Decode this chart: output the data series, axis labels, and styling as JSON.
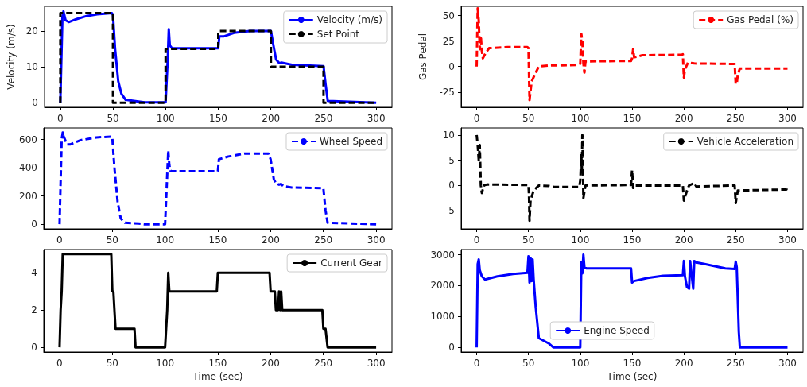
{
  "chart_data": [
    {
      "type": "line",
      "ylabel": "Velocity (m/s)",
      "xlim": [
        -15,
        315
      ],
      "xticks": [
        0,
        50,
        100,
        150,
        200,
        250,
        300
      ],
      "ylim": [
        -1.3,
        26.9
      ],
      "yticks": [
        0,
        10,
        20
      ],
      "legend": "top right",
      "marker": "none",
      "series": [
        {
          "name": "Velocity (m/s)",
          "color": "#0000ff",
          "line_style": "solid",
          "x": [
            0,
            2,
            3,
            5,
            8,
            15,
            25,
            35,
            49,
            50,
            52,
            55,
            58,
            62,
            70,
            80,
            100,
            102,
            103,
            104,
            106,
            150,
            151,
            155,
            165,
            180,
            200,
            203,
            205,
            208,
            210,
            220,
            250,
            252,
            254,
            300
          ],
          "values": [
            0,
            24,
            25.5,
            23,
            22.5,
            23.3,
            24.2,
            24.7,
            25,
            24.5,
            15,
            6,
            2.5,
            0.8,
            0.5,
            0.1,
            0.1,
            12,
            20.5,
            16,
            15.2,
            15.2,
            18.5,
            18.5,
            19.5,
            20,
            20,
            15,
            12,
            11,
            11.2,
            10.6,
            10.2,
            5,
            0.5,
            0
          ]
        },
        {
          "name": "Set Point",
          "color": "#000000",
          "line_style": "dashed",
          "x": [
            0,
            0,
            50,
            50,
            100,
            100,
            150,
            150,
            200,
            200,
            250,
            250,
            300
          ],
          "values": [
            0,
            25,
            25,
            0,
            0,
            15,
            15,
            20,
            20,
            10,
            10,
            0,
            0
          ]
        }
      ]
    },
    {
      "type": "line",
      "ylabel": "Gas Pedal",
      "xlim": [
        -15,
        315
      ],
      "xticks": [
        0,
        50,
        100,
        150,
        200,
        250,
        300
      ],
      "ylim": [
        -40,
        59
      ],
      "yticks": [
        -25,
        0,
        25,
        50
      ],
      "legend": "top right",
      "marker": "none",
      "series": [
        {
          "name": "Gas Pedal (%)",
          "color": "#ff0000",
          "line_style": "dashed",
          "x": [
            0,
            1,
            2,
            3,
            4,
            5,
            6,
            8,
            12,
            30,
            49,
            50,
            51,
            53,
            56,
            60,
            70,
            99,
            100,
            101,
            102,
            103,
            104,
            105,
            149,
            150,
            151,
            152,
            160,
            198,
            199,
            200,
            201,
            204,
            210,
            249,
            250,
            251,
            252,
            254,
            300
          ],
          "values": [
            0,
            57,
            45,
            17,
            30,
            15,
            8,
            12,
            18,
            19,
            19,
            18,
            -33,
            -15,
            -8,
            0,
            1,
            1.5,
            3,
            32,
            25,
            3,
            -6,
            5,
            5.5,
            8,
            17,
            9,
            11,
            11.5,
            12,
            -11,
            -3,
            4,
            3,
            2.5,
            -17,
            -17,
            -8,
            -2,
            -2
          ]
        }
      ]
    },
    {
      "type": "line",
      "xlim": [
        -15,
        315
      ],
      "xticks": [
        0,
        50,
        100,
        150,
        200,
        250,
        300
      ],
      "ylim": [
        -33,
        682
      ],
      "yticks": [
        0,
        200,
        400,
        600
      ],
      "legend": "top right",
      "marker": "none",
      "series": [
        {
          "name": "Wheel Speed",
          "color": "#0000ff",
          "line_style": "dashed",
          "x": [
            0,
            2,
            3,
            4,
            7,
            10,
            20,
            35,
            49,
            50,
            52,
            55,
            58,
            62,
            75,
            80,
            100,
            102,
            103,
            104,
            105,
            106,
            150,
            151,
            160,
            175,
            198,
            200,
            203,
            205,
            208,
            210,
            212,
            220,
            250,
            252,
            254,
            300
          ],
          "values": [
            0,
            600,
            650,
            620,
            565,
            565,
            595,
            615,
            620,
            610,
            400,
            160,
            40,
            10,
            5,
            0,
            0,
            350,
            520,
            420,
            380,
            375,
            375,
            460,
            480,
            500,
            500,
            460,
            320,
            290,
            280,
            285,
            270,
            260,
            255,
            100,
            10,
            0
          ]
        }
      ]
    },
    {
      "type": "line",
      "xlim": [
        -15,
        315
      ],
      "xticks": [
        0,
        50,
        100,
        150,
        200,
        250,
        300
      ],
      "ylim": [
        -8.6,
        11.4
      ],
      "yticks": [
        -5,
        0,
        5,
        10
      ],
      "legend": "top right",
      "marker": "none",
      "series": [
        {
          "name": "Vehicle Acceleration",
          "color": "#000000",
          "line_style": "dashed",
          "x": [
            0,
            1,
            2,
            3,
            4,
            5,
            7,
            10,
            50,
            50.5,
            51,
            52,
            55,
            60,
            70,
            75,
            99,
            100,
            101,
            101.5,
            102,
            103,
            105,
            149,
            150,
            151,
            152,
            199,
            200,
            203,
            205,
            210,
            212,
            249,
            250,
            252,
            299,
            300
          ],
          "values": [
            10,
            8,
            5,
            8,
            0,
            -1.5,
            0,
            0.2,
            0.1,
            -2,
            -7,
            -3,
            -1,
            0,
            -0.1,
            -0.3,
            -0.3,
            1,
            6,
            3,
            10,
            -2.5,
            0,
            0.1,
            3,
            -0.5,
            0,
            0,
            -3,
            -1,
            0,
            0.5,
            -0.2,
            0,
            -3.5,
            -1,
            -0.8,
            0
          ]
        }
      ]
    },
    {
      "type": "line",
      "xlabel": "Time (sec)",
      "xlim": [
        -15,
        315
      ],
      "xticks": [
        0,
        50,
        100,
        150,
        200,
        250,
        300
      ],
      "ylim": [
        -0.25,
        5.25
      ],
      "yticks": [
        0,
        2,
        4
      ],
      "legend": "top right",
      "marker": "none",
      "series": [
        {
          "name": "Current Gear",
          "color": "#000000",
          "line_style": "solid",
          "x": [
            0,
            1,
            2,
            3,
            49,
            50,
            51,
            53,
            71,
            72,
            100,
            102,
            103,
            104,
            149,
            150,
            199,
            200,
            204,
            205,
            207,
            208,
            209,
            210,
            211,
            249,
            250,
            252,
            254,
            300
          ],
          "values": [
            0,
            2,
            3,
            5,
            5,
            3,
            3,
            1,
            1,
            0,
            0,
            2,
            4,
            3,
            3,
            4,
            4,
            3,
            3,
            2,
            2,
            3,
            2,
            3,
            2,
            2,
            1,
            1,
            0,
            0
          ]
        }
      ]
    },
    {
      "type": "line",
      "xlabel": "Time (sec)",
      "xlim": [
        -15,
        315
      ],
      "xticks": [
        0,
        50,
        100,
        150,
        200,
        250,
        300
      ],
      "ylim": [
        -150,
        3170
      ],
      "yticks": [
        0,
        1000,
        2000,
        3000
      ],
      "legend": "bottom",
      "marker": "none",
      "series": [
        {
          "name": "Engine Speed",
          "color": "#0000ff",
          "line_style": "solid",
          "x": [
            0,
            1,
            2,
            3,
            5,
            8,
            20,
            35,
            49,
            50,
            51,
            52,
            53,
            54,
            55,
            57,
            60,
            70,
            74,
            100,
            101,
            102,
            103,
            104,
            106,
            149,
            150,
            152,
            165,
            180,
            199,
            200,
            201,
            203,
            205,
            206,
            208,
            209,
            210,
            212,
            220,
            240,
            249,
            250,
            251,
            253,
            254,
            300
          ],
          "values": [
            0,
            2700,
            2850,
            2500,
            2300,
            2200,
            2300,
            2380,
            2420,
            2950,
            2100,
            2900,
            2150,
            2850,
            2200,
            1300,
            300,
            120,
            0,
            0,
            2750,
            2400,
            3000,
            2600,
            2560,
            2560,
            2100,
            2150,
            2250,
            2320,
            2340,
            2800,
            2300,
            1950,
            1900,
            2800,
            2200,
            1900,
            2800,
            2750,
            2700,
            2560,
            2540,
            2780,
            2600,
            500,
            0,
            0
          ]
        }
      ]
    }
  ]
}
